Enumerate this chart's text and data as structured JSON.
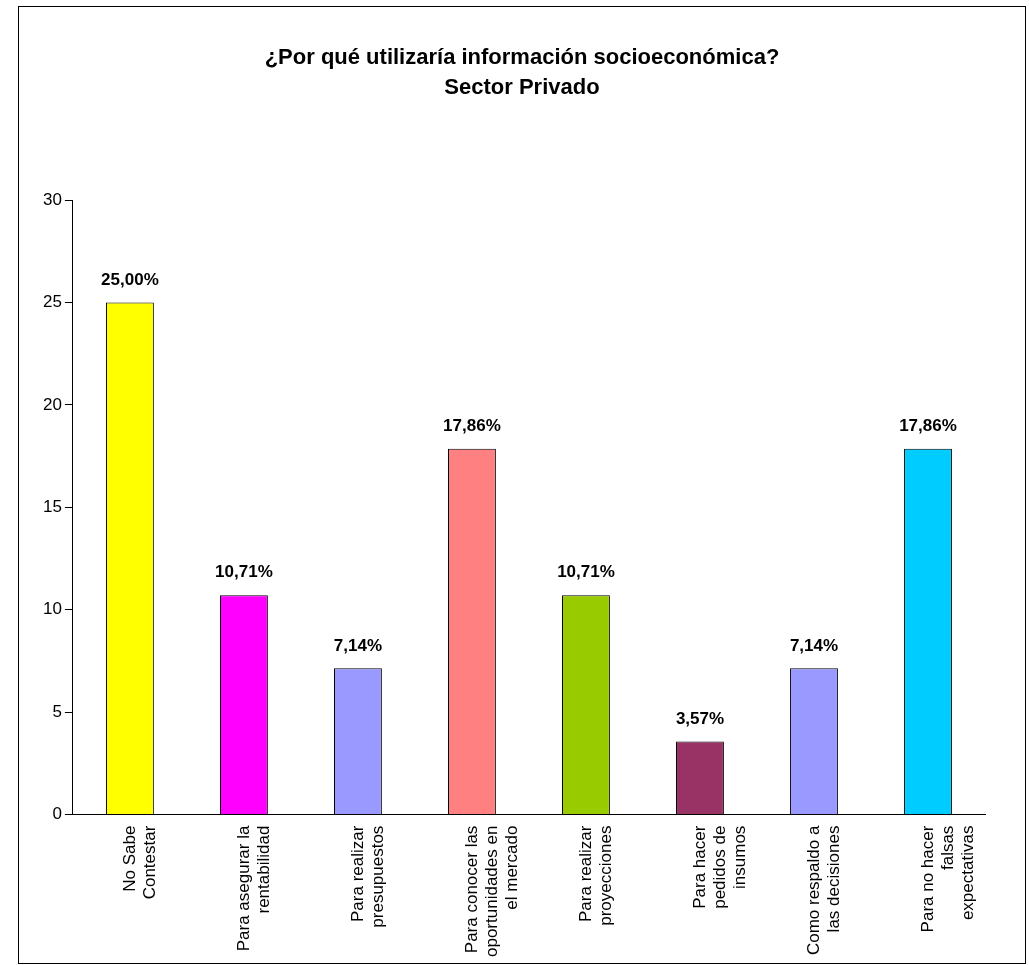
{
  "chart_data": {
    "type": "bar",
    "title": "¿Por qué utilizaría información socioeconómica?\nSector Privado",
    "categories": [
      "No Sabe Contestar",
      "Para asegurar la rentabilidad",
      "Para realizar presupuestos",
      "Para conocer las oportunidades en el mercado",
      "Para realizar proyecciones",
      "Para hacer pedidos de insumos",
      "Como respaldo a las decisiones",
      "Para no hacer falsas expectativas"
    ],
    "values": [
      25,
      10.71,
      7.14,
      17.86,
      10.71,
      3.57,
      7.14,
      17.86
    ],
    "colors": [
      "#ffff00",
      "#ff00ff",
      "#9999ff",
      "#ff8080",
      "#99cc00",
      "#993366",
      "#9999ff",
      "#00ccff"
    ],
    "value_labels": [
      "25,00%",
      "10,71%",
      "7,14%",
      "17,86%",
      "10,71%",
      "3,57%",
      "7,14%",
      "17,86%"
    ],
    "ylim": [
      0,
      30
    ],
    "yticks": [
      0,
      5,
      10,
      15,
      20,
      25,
      30
    ],
    "grid": false,
    "legend": false
  }
}
